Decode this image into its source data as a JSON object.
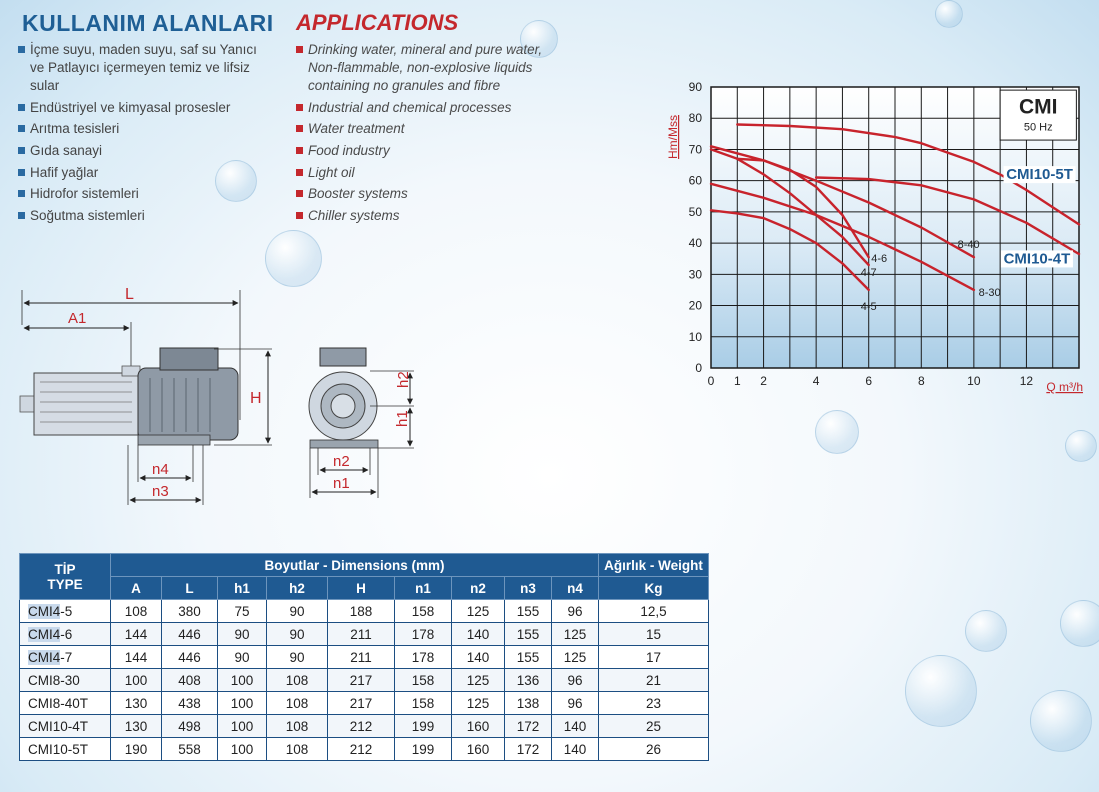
{
  "tr_section": {
    "title": "KULLANIM ALANLARI",
    "items": [
      "İçme suyu, maden suyu, saf su Yanıcı ve Patlayıcı içermeyen temiz ve lifsiz sular",
      "Endüstriyel ve kimyasal prosesler",
      "Arıtma tesisleri",
      "Gıda sanayi",
      "Hafif yağlar",
      "Hidrofor sistemleri",
      "Soğutma sistemleri"
    ]
  },
  "en_section": {
    "title": "APPLICATIONS",
    "items": [
      "Drinking water, mineral and pure water, Non-flammable, non-explosive liquids containing no granules and fibre",
      "Industrial and chemical processes",
      "Water treatment",
      "Food industry",
      "Light oil",
      "Booster systems",
      "Chiller systems"
    ]
  },
  "drawing_labels": {
    "L": "L",
    "A1": "A1",
    "H": "H",
    "n4": "n4",
    "n3": "n3",
    "h2": "h2",
    "h1": "h1",
    "n2": "n2",
    "n1": "n1"
  },
  "colors": {
    "accent_blue": "#1f5a92",
    "accent_red": "#c4282d",
    "curve": "#c8232c"
  },
  "chart_data": {
    "type": "line",
    "title": "CMI",
    "subtitle": "50 Hz",
    "ylabel": "Hm/Mss",
    "xlabel": "Q m³/h",
    "xlim": [
      0,
      14
    ],
    "ylim": [
      0,
      90
    ],
    "x_ticks": [
      0,
      1,
      2,
      4,
      6,
      8,
      10,
      12
    ],
    "y_ticks": [
      0,
      10,
      20,
      30,
      40,
      50,
      60,
      70,
      80,
      90
    ],
    "grid": true,
    "series": [
      {
        "name": "CMI10-5T",
        "x": [
          1,
          3,
          5,
          7,
          8,
          9,
          10,
          11,
          12,
          13,
          14
        ],
        "y": [
          78,
          77.5,
          76.5,
          74,
          72,
          69,
          66,
          62,
          57,
          51.5,
          46
        ]
      },
      {
        "name": "CMI10-4T",
        "x": [
          4,
          6,
          8,
          10,
          12,
          14
        ],
        "y": [
          61,
          60.5,
          58.5,
          54,
          46.5,
          36.5
        ]
      },
      {
        "name": "8-40",
        "x": [
          0,
          2,
          4,
          6,
          8,
          10
        ],
        "y": [
          71,
          66.5,
          60,
          53,
          45,
          35.5
        ]
      },
      {
        "name": "8-30",
        "x": [
          0,
          2,
          4,
          6,
          8,
          10
        ],
        "y": [
          59,
          54.5,
          49,
          42,
          34,
          25
        ]
      },
      {
        "name": "4-6",
        "x": [
          1,
          2,
          3,
          4,
          5,
          6
        ],
        "y": [
          67,
          66.5,
          63.5,
          58,
          49,
          35.5
        ]
      },
      {
        "name": "4-7",
        "x": [
          0,
          1,
          2,
          3,
          4,
          5,
          6
        ],
        "y": [
          70,
          67,
          62,
          56,
          49,
          42,
          33
        ]
      },
      {
        "name": "4-5",
        "x": [
          0,
          1,
          2,
          3,
          4,
          5,
          6
        ],
        "y": [
          50.5,
          49.5,
          48,
          44.5,
          40,
          33.5,
          25
        ]
      }
    ]
  },
  "table": {
    "type_header": [
      "TİP",
      "TYPE"
    ],
    "dims_header": "Boyutlar -  Dimensions (mm)",
    "weight_header": "Ağırlık - Weight",
    "sub_headers": [
      "A",
      "L",
      "h1",
      "h2",
      "H",
      "n1",
      "n2",
      "n3",
      "n4"
    ],
    "weight_unit": "Kg",
    "rows": [
      {
        "type_prefix": "CMI4",
        "type_suffix": "-5",
        "vals": [
          "108",
          "380",
          "75",
          "90",
          "188",
          "158",
          "125",
          "155",
          "96"
        ],
        "weight": "12,5"
      },
      {
        "type_prefix": "CMI4",
        "type_suffix": "-6",
        "vals": [
          "144",
          "446",
          "90",
          "90",
          "211",
          "178",
          "140",
          "155",
          "125"
        ],
        "weight": "15"
      },
      {
        "type_prefix": "CMI4",
        "type_suffix": "-7",
        "vals": [
          "144",
          "446",
          "90",
          "90",
          "211",
          "178",
          "140",
          "155",
          "125"
        ],
        "weight": "17"
      },
      {
        "type_prefix": "",
        "type_suffix": "CMI8-30",
        "vals": [
          "100",
          "408",
          "100",
          "108",
          "217",
          "158",
          "125",
          "136",
          "96"
        ],
        "weight": "21"
      },
      {
        "type_prefix": "",
        "type_suffix": "CMI8-40T",
        "vals": [
          "130",
          "438",
          "100",
          "108",
          "217",
          "158",
          "125",
          "138",
          "96"
        ],
        "weight": "23"
      },
      {
        "type_prefix": "",
        "type_suffix": "CMI10-4T",
        "vals": [
          "130",
          "498",
          "100",
          "108",
          "212",
          "199",
          "160",
          "172",
          "140"
        ],
        "weight": "25"
      },
      {
        "type_prefix": "",
        "type_suffix": "CMI10-5T",
        "vals": [
          "190",
          "558",
          "100",
          "108",
          "212",
          "199",
          "160",
          "172",
          "140"
        ],
        "weight": "26"
      }
    ]
  }
}
